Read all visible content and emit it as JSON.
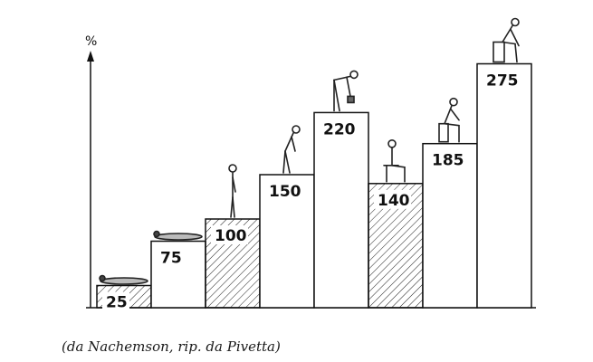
{
  "chart_data": {
    "type": "bar",
    "ylabel": "%",
    "values": [
      25,
      75,
      100,
      150,
      220,
      140,
      185,
      275
    ],
    "hatched": [
      true,
      false,
      true,
      false,
      false,
      true,
      false,
      false
    ],
    "figures": [
      "lying-figure-icon",
      "lying-figure-icon",
      "standing-figure-icon",
      "bending-figure-icon",
      "bending-forward-lifting-figure-icon",
      "sitting-figure-icon",
      "sitting-forward-figure-icon",
      "sitting-lifting-figure-icon"
    ],
    "ylim": [
      0,
      300
    ],
    "grid": false,
    "legend": "none"
  },
  "caption": "(da Nachemson, rip. da Pivetta)"
}
